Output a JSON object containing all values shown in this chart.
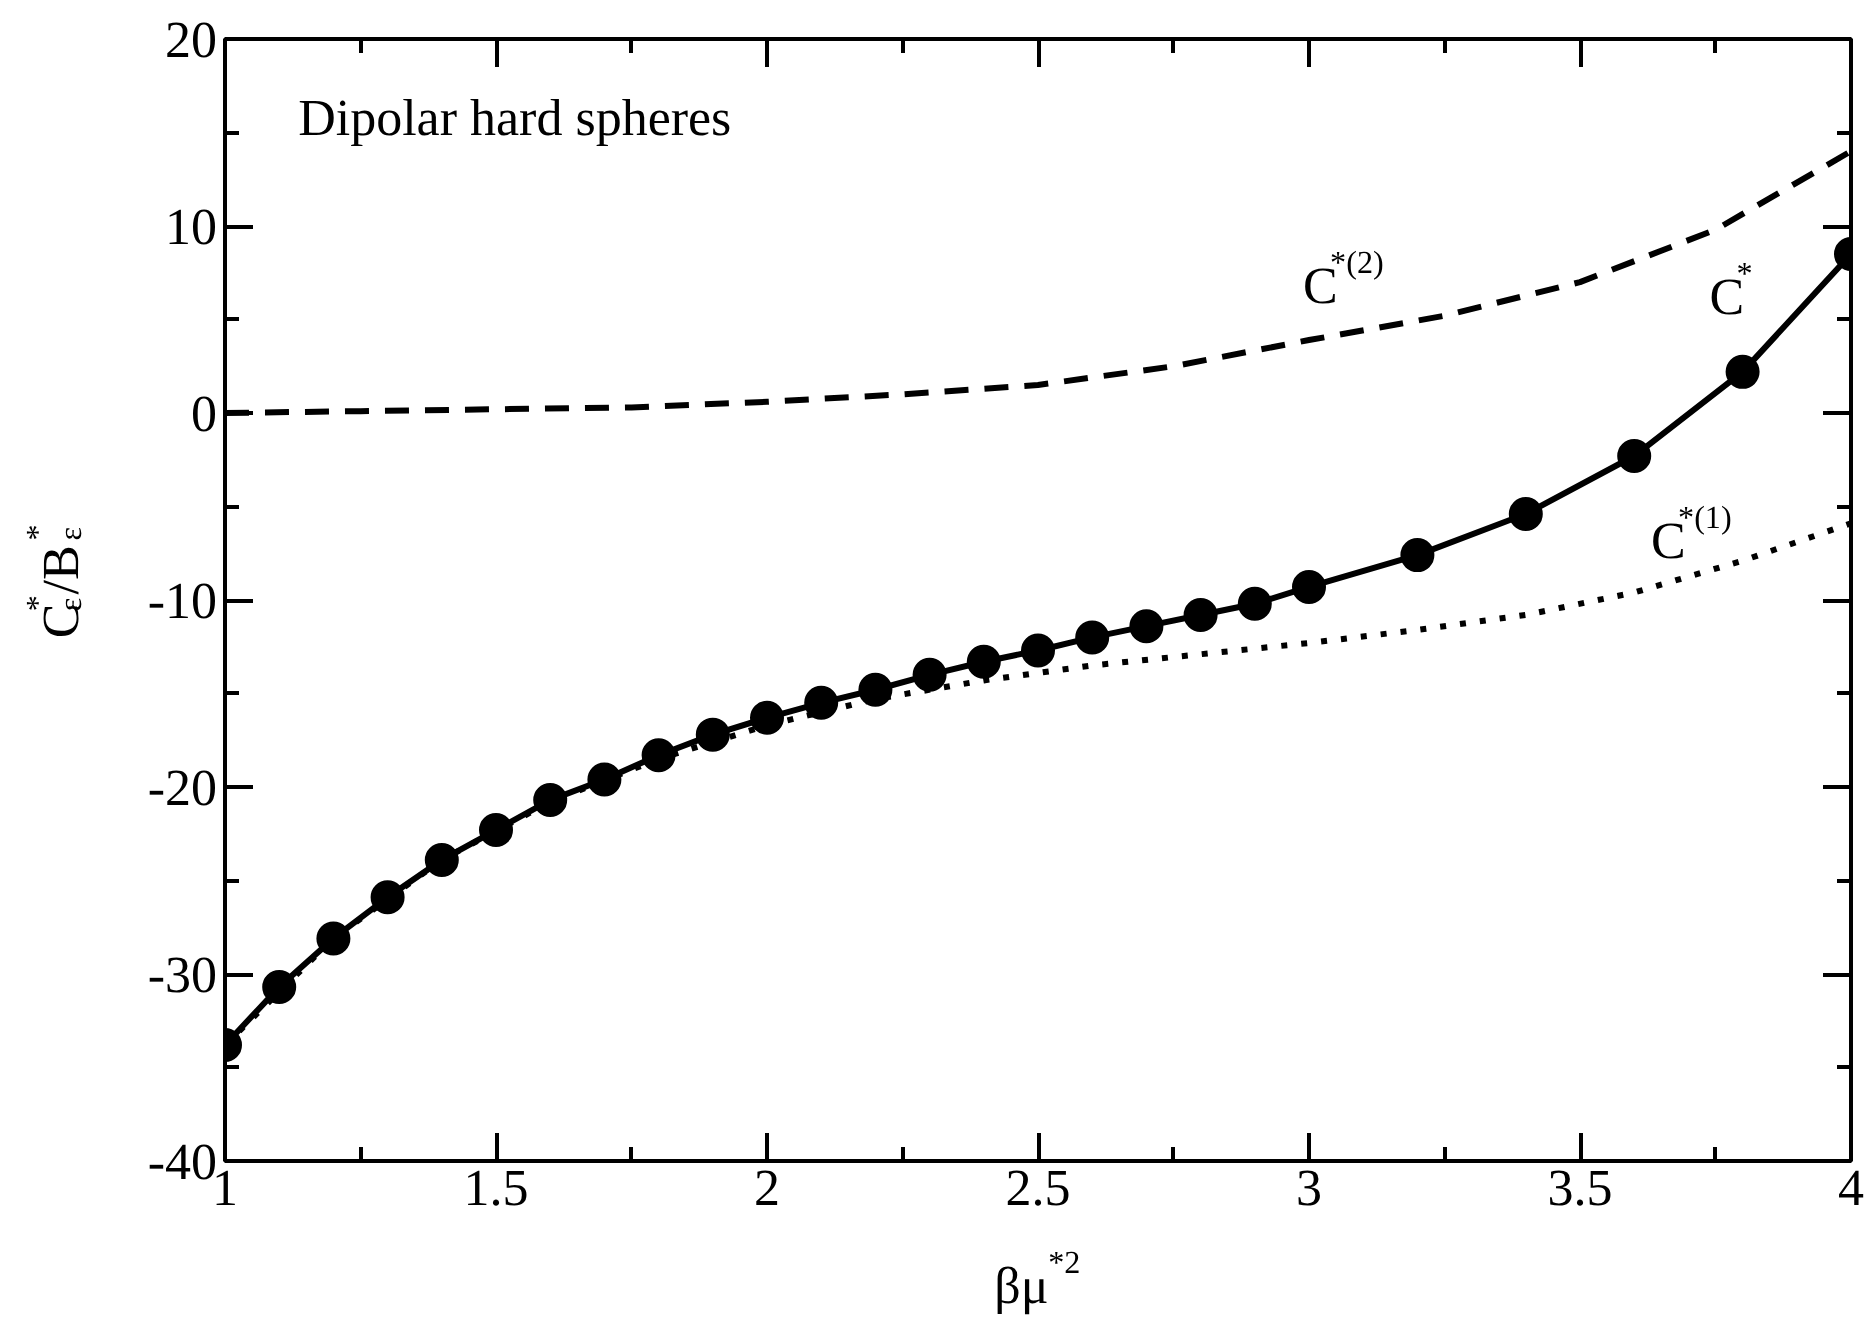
{
  "chart_data": {
    "type": "line",
    "title": "Dipolar hard spheres",
    "xlabel": "βμ$^{*2}$",
    "ylabel": "C$^{*}$$_{ε}$/B$^{*}$$_{ε}$",
    "xlim": [
      1,
      4
    ],
    "ylim": [
      -40,
      20
    ],
    "xticks": [
      1,
      1.5,
      2,
      2.5,
      3,
      3.5,
      4
    ],
    "yticks": [
      -40,
      -30,
      -20,
      -10,
      0,
      10,
      20
    ],
    "grid": false,
    "series": [
      {
        "color": "#000000",
        "line_style": "dashed",
        "marker": "none",
        "x": [
          1,
          1.25,
          1.5,
          1.75,
          2,
          2.25,
          2.5,
          2.75,
          3,
          3.25,
          3.5,
          3.75,
          4
        ],
        "values": [
          0,
          0.1,
          0.2,
          0.3,
          0.6,
          1.0,
          1.5,
          2.5,
          3.9,
          5.2,
          7.0,
          9.8,
          14
        ]
      },
      {
        "color": "#000000",
        "line_style": "dotted",
        "marker": "none",
        "x": [
          1,
          1.2,
          1.4,
          1.6,
          1.8,
          2,
          2.2,
          2.4,
          2.6,
          2.8,
          3,
          3.2,
          3.4,
          3.6,
          3.8,
          4
        ],
        "values": [
          -33.8,
          -28.1,
          -23.9,
          -20.8,
          -18.5,
          -16.7,
          -15.3,
          -14.3,
          -13.5,
          -12.9,
          -12.3,
          -11.6,
          -10.8,
          -9.6,
          -7.9,
          -5.9
        ]
      },
      {
        "color": "#000000",
        "line_style": "solid",
        "marker": "circle",
        "x": [
          1,
          1.1,
          1.2,
          1.3,
          1.4,
          1.5,
          1.6,
          1.7,
          1.8,
          1.9,
          2,
          2.1,
          2.2,
          2.3,
          2.4,
          2.5,
          2.6,
          2.7,
          2.8,
          2.9,
          3,
          3.2,
          3.4,
          3.6,
          3.8,
          4
        ],
        "values": [
          -33.8,
          -30.7,
          -28.1,
          -25.9,
          -23.9,
          -22.3,
          -20.7,
          -19.6,
          -18.3,
          -17.2,
          -16.3,
          -15.5,
          -14.8,
          -14.0,
          -13.3,
          -12.7,
          -12.0,
          -11.4,
          -10.8,
          -10.2,
          -9.3,
          -7.6,
          -5.4,
          -2.3,
          2.2,
          8.5
        ]
      }
    ],
    "annotations": [
      "C$^{*(2)}$",
      "C$^{*}$",
      "C$^{*(1)}$"
    ]
  }
}
